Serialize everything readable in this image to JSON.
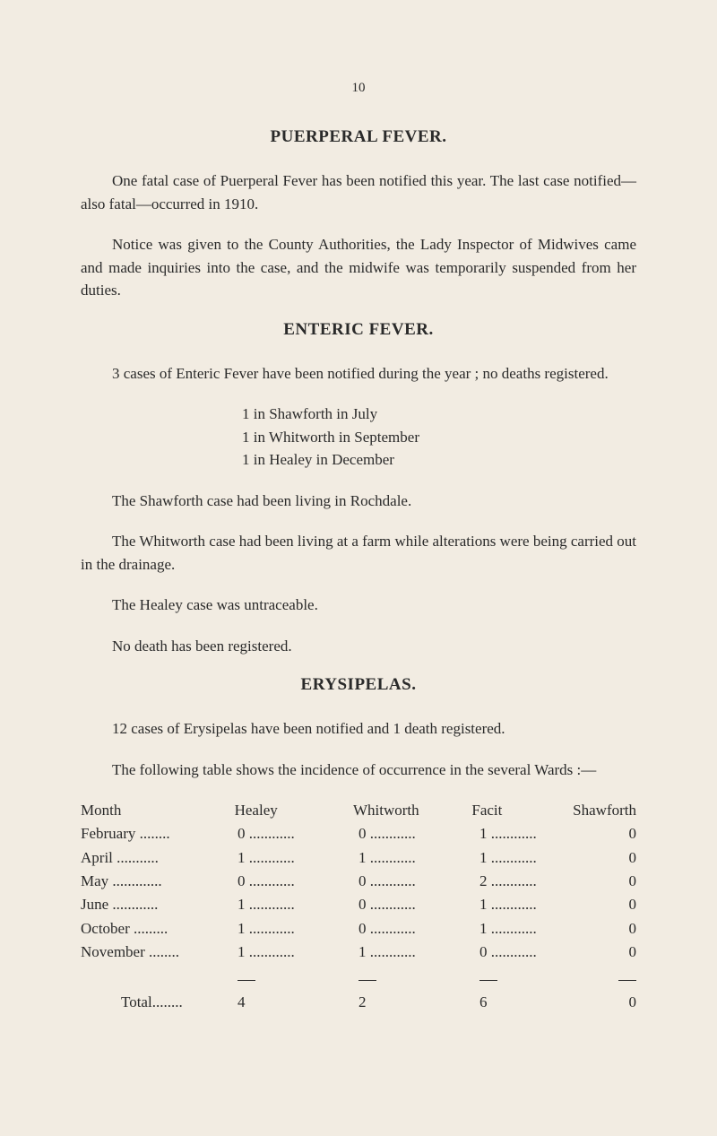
{
  "page_number": "10",
  "section_puerperal": {
    "heading": "PUERPERAL FEVER.",
    "p1": "One fatal case of Puerperal Fever has been notified this year. The last case notified—also fatal—occurred in 1910.",
    "p2": "Notice was given to the County Authorities, the Lady Inspector of Midwives came and made inquiries into the case, and the midwife was temporarily suspended from her duties."
  },
  "section_enteric": {
    "heading": "ENTERIC FEVER.",
    "p1": "3 cases of Enteric Fever have been notified during the year ; no deaths registered.",
    "list": [
      "1 in Shawforth in July",
      "1 in Whitworth in September",
      "1 in Healey in December"
    ],
    "p2": "The Shawforth case had been living in Rochdale.",
    "p3": "The Whitworth case had been living at a farm while alterations were being carried out in the drainage.",
    "p4": "The Healey case was untraceable.",
    "p5": "No death has been registered."
  },
  "section_erysipelas": {
    "heading": "ERYSIPELAS.",
    "p1": "12 cases of Erysipelas have been notified and 1 death registered.",
    "p2": "The following table shows the incidence of occurrence in the several Wards :—",
    "table": {
      "columns": [
        "Month",
        "Healey",
        "Whitworth",
        "Facit",
        "Shawforth"
      ],
      "rows": [
        [
          "February",
          "0",
          "0",
          "1",
          "0"
        ],
        [
          "April",
          "1",
          "1",
          "1",
          "0"
        ],
        [
          "May",
          "0",
          "0",
          "2",
          "0"
        ],
        [
          "June",
          "1",
          "0",
          "1",
          "0"
        ],
        [
          "October",
          "1",
          "0",
          "1",
          "0"
        ],
        [
          "November",
          "1",
          "1",
          "0",
          "0"
        ]
      ],
      "total_label": "Total",
      "totals": [
        "4",
        "2",
        "6",
        "0"
      ]
    }
  }
}
